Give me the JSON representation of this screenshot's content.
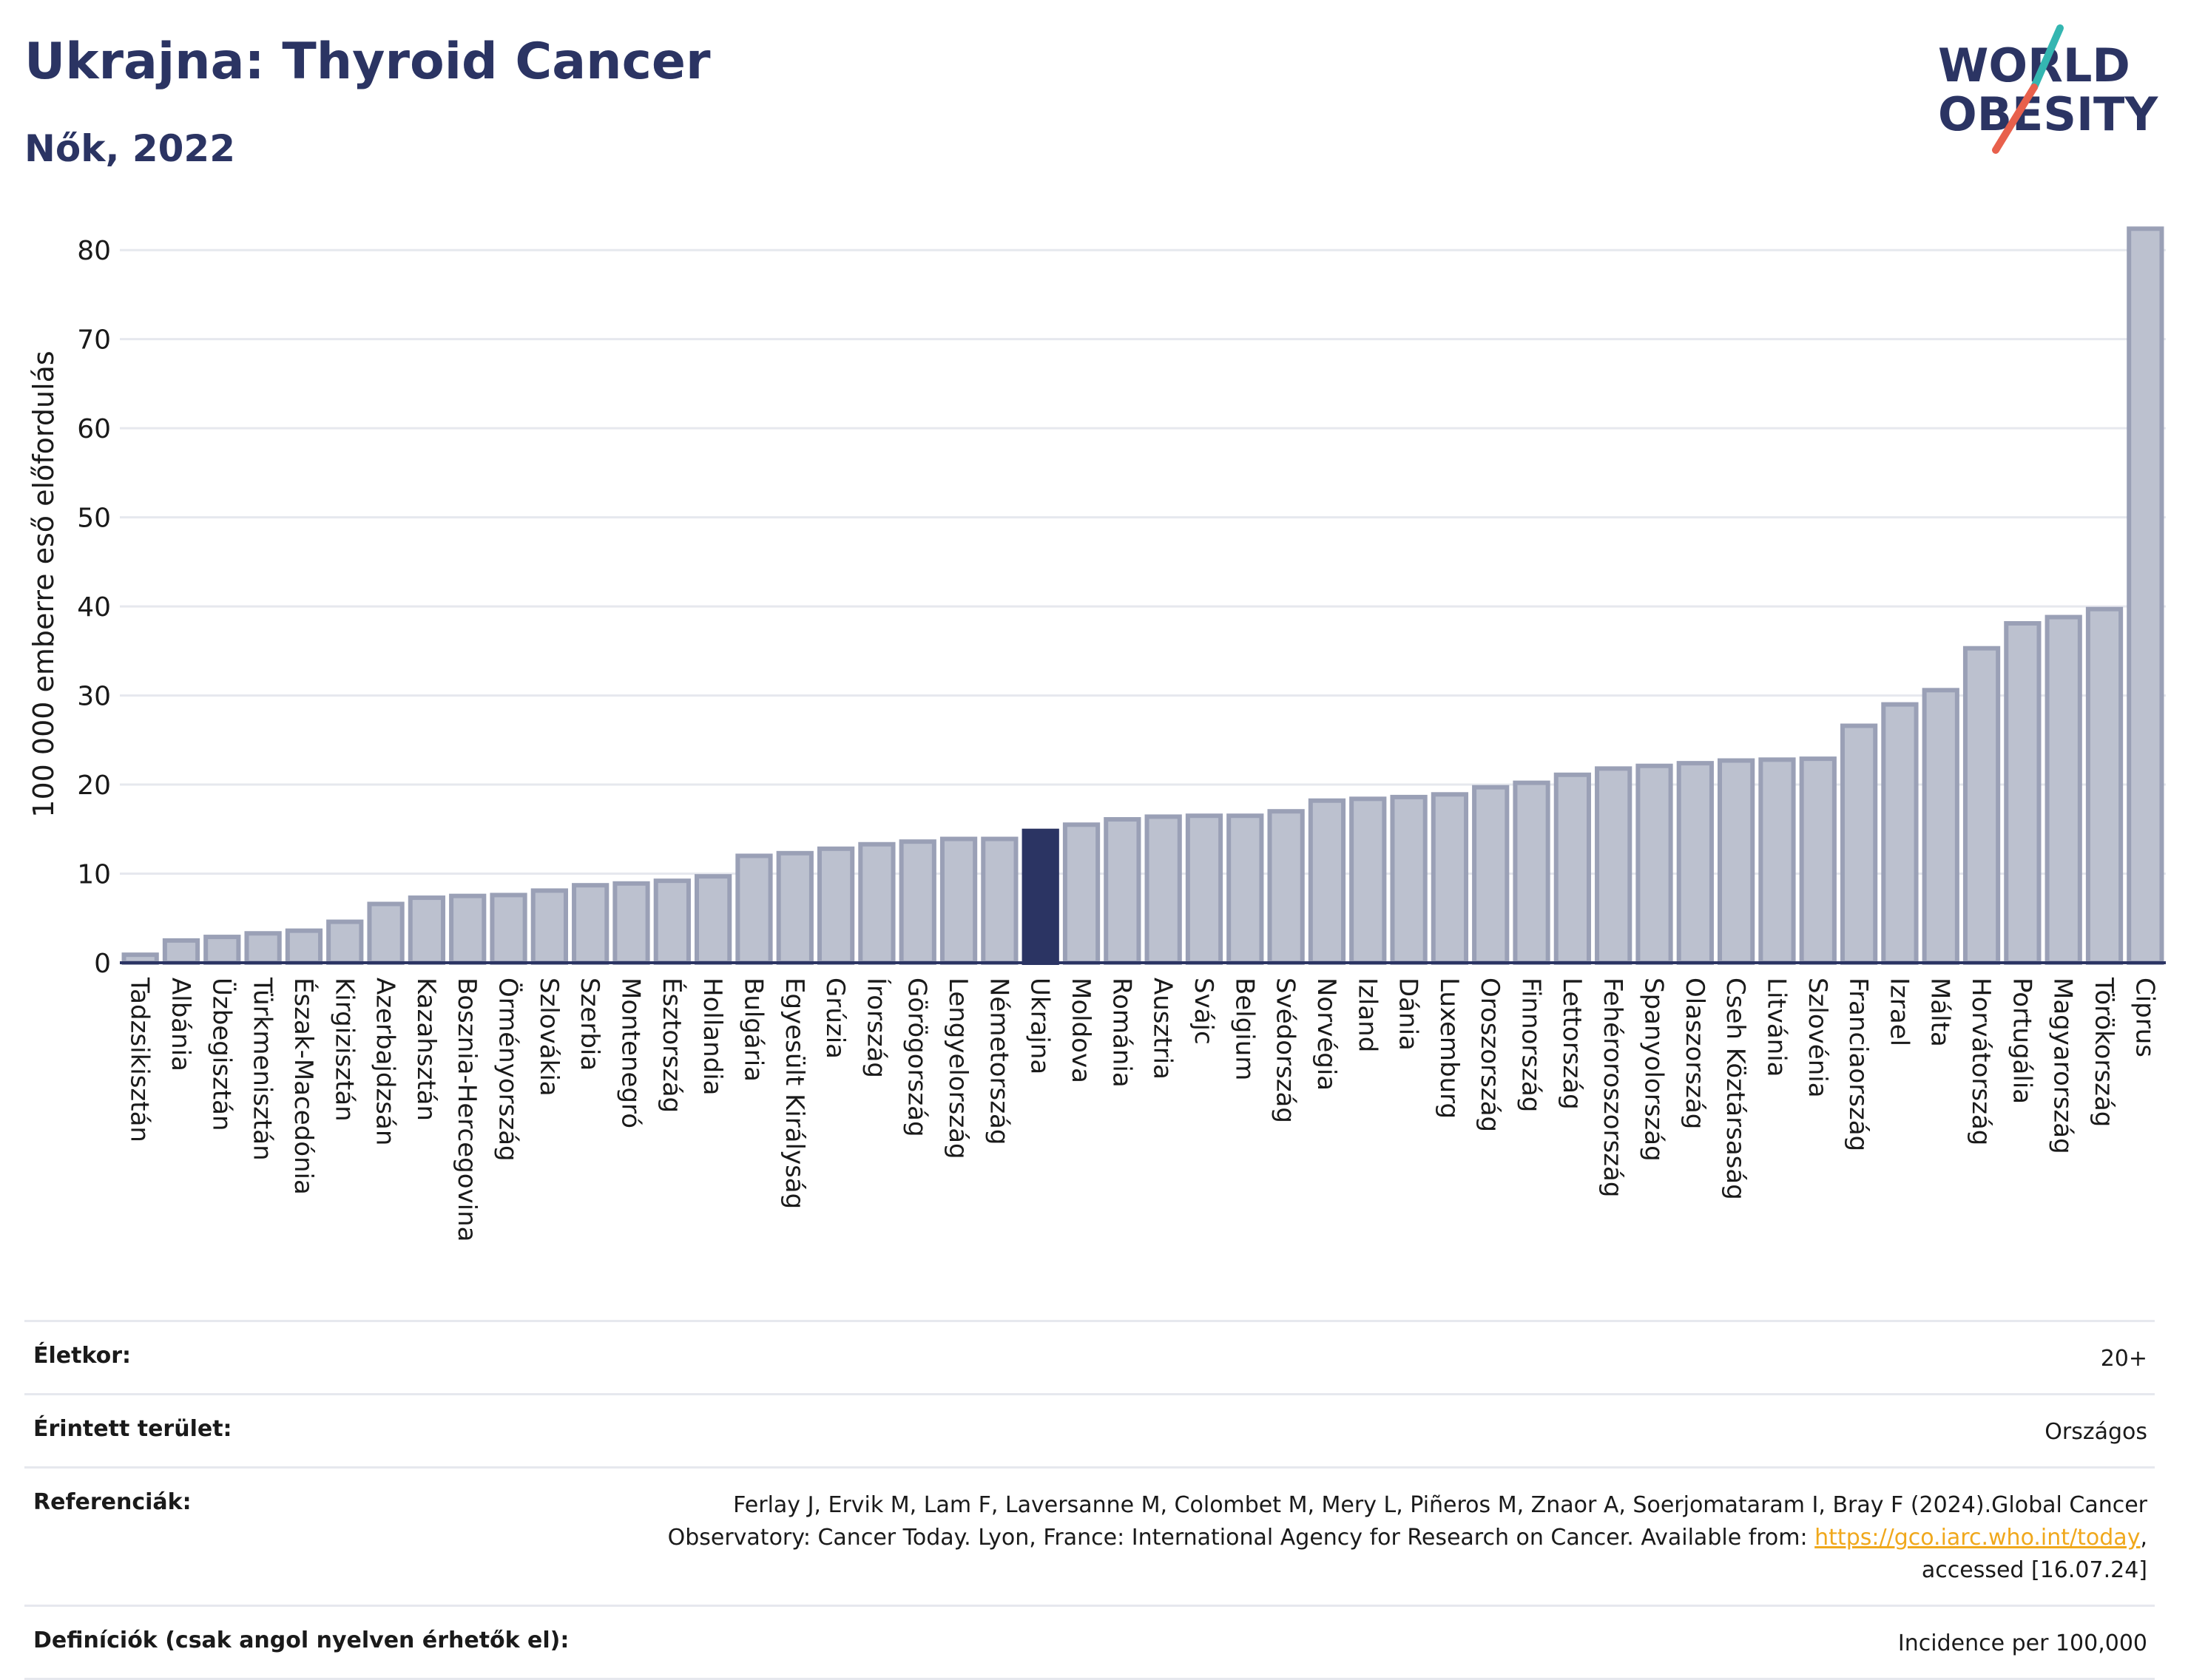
{
  "header": {
    "title": "Ukrajna: Thyroid Cancer",
    "subtitle": "Nők, 2022"
  },
  "logo": {
    "line1": "WORLD",
    "line2": "OBESITY",
    "colors": {
      "text": "#2b3463",
      "slash_teal": "#34b6b1",
      "slash_red": "#e8604c"
    }
  },
  "colors": {
    "bar": "#bcc1cf",
    "bar_border": "#9aa0b6",
    "highlight": "#2b3463",
    "axis": "#2b3463",
    "grid": "#e6e8ee"
  },
  "chart_data": {
    "type": "bar",
    "title": "Ukrajna: Thyroid Cancer",
    "ylabel": "100 000 emberre eső előfordulás",
    "xlabel": "",
    "ylim": [
      0,
      84
    ],
    "yticks": [
      0,
      10,
      20,
      30,
      40,
      50,
      60,
      70,
      80
    ],
    "grid": true,
    "highlight": "Ukrajna",
    "categories": [
      "Tadzsikisztán",
      "Albánia",
      "Üzbegisztán",
      "Türkmenisztán",
      "Észak-Macedónia",
      "Kirgizisztán",
      "Azerbajdzsán",
      "Kazahsztán",
      "Bosznia-Hercegovina",
      "Örményország",
      "Szlovákia",
      "Szerbia",
      "Montenegró",
      "Észtország",
      "Hollandia",
      "Bulgária",
      "Egyesült Királyság",
      "Grúzia",
      "Írország",
      "Görögország",
      "Lengyelország",
      "Németország",
      "Ukrajna",
      "Moldova",
      "Románia",
      "Ausztria",
      "Svájc",
      "Belgium",
      "Svédország",
      "Norvégia",
      "Izland",
      "Dánia",
      "Luxemburg",
      "Oroszország",
      "Finnország",
      "Lettország",
      "Fehéroroszország",
      "Spanyolország",
      "Olaszország",
      "Cseh Köztársaság",
      "Litvánia",
      "Szlovénia",
      "Franciaország",
      "Izrael",
      "Málta",
      "Horvátország",
      "Portugália",
      "Magyarország",
      "Törökország",
      "Ciprus"
    ],
    "values": [
      0.9,
      2.5,
      2.9,
      3.3,
      3.6,
      4.6,
      6.6,
      7.3,
      7.5,
      7.6,
      8.1,
      8.7,
      8.9,
      9.2,
      9.7,
      12.0,
      12.3,
      12.8,
      13.3,
      13.6,
      13.9,
      13.9,
      14.8,
      15.5,
      16.1,
      16.4,
      16.5,
      16.5,
      17.0,
      18.2,
      18.4,
      18.6,
      18.9,
      19.7,
      20.2,
      21.1,
      21.8,
      22.1,
      22.4,
      22.7,
      22.8,
      22.9,
      26.6,
      29.0,
      30.6,
      35.3,
      38.1,
      38.8,
      39.7,
      82.4
    ]
  },
  "info": {
    "age_label": "Életkor:",
    "age_value": "20+",
    "area_label": "Érintett terület:",
    "area_value": "Országos",
    "ref_label": "Referenciák:",
    "ref_text_1": "Ferlay J, Ervik M, Lam F, Laversanne M, Colombet M, Mery L, Piñeros M, Znaor A, Soerjomataram I, Bray F (2024).Global Cancer",
    "ref_text_2": "Observatory: Cancer Today. Lyon, France: International Agency for Research on Cancer. Available from:",
    "ref_link": "https://gco.iarc.who.int/today",
    "ref_text_3": "accessed [16.07.24]",
    "def_label": "Definíciók (csak angol nyelven érhetők el):",
    "def_value": "Incidence per 100,000"
  }
}
